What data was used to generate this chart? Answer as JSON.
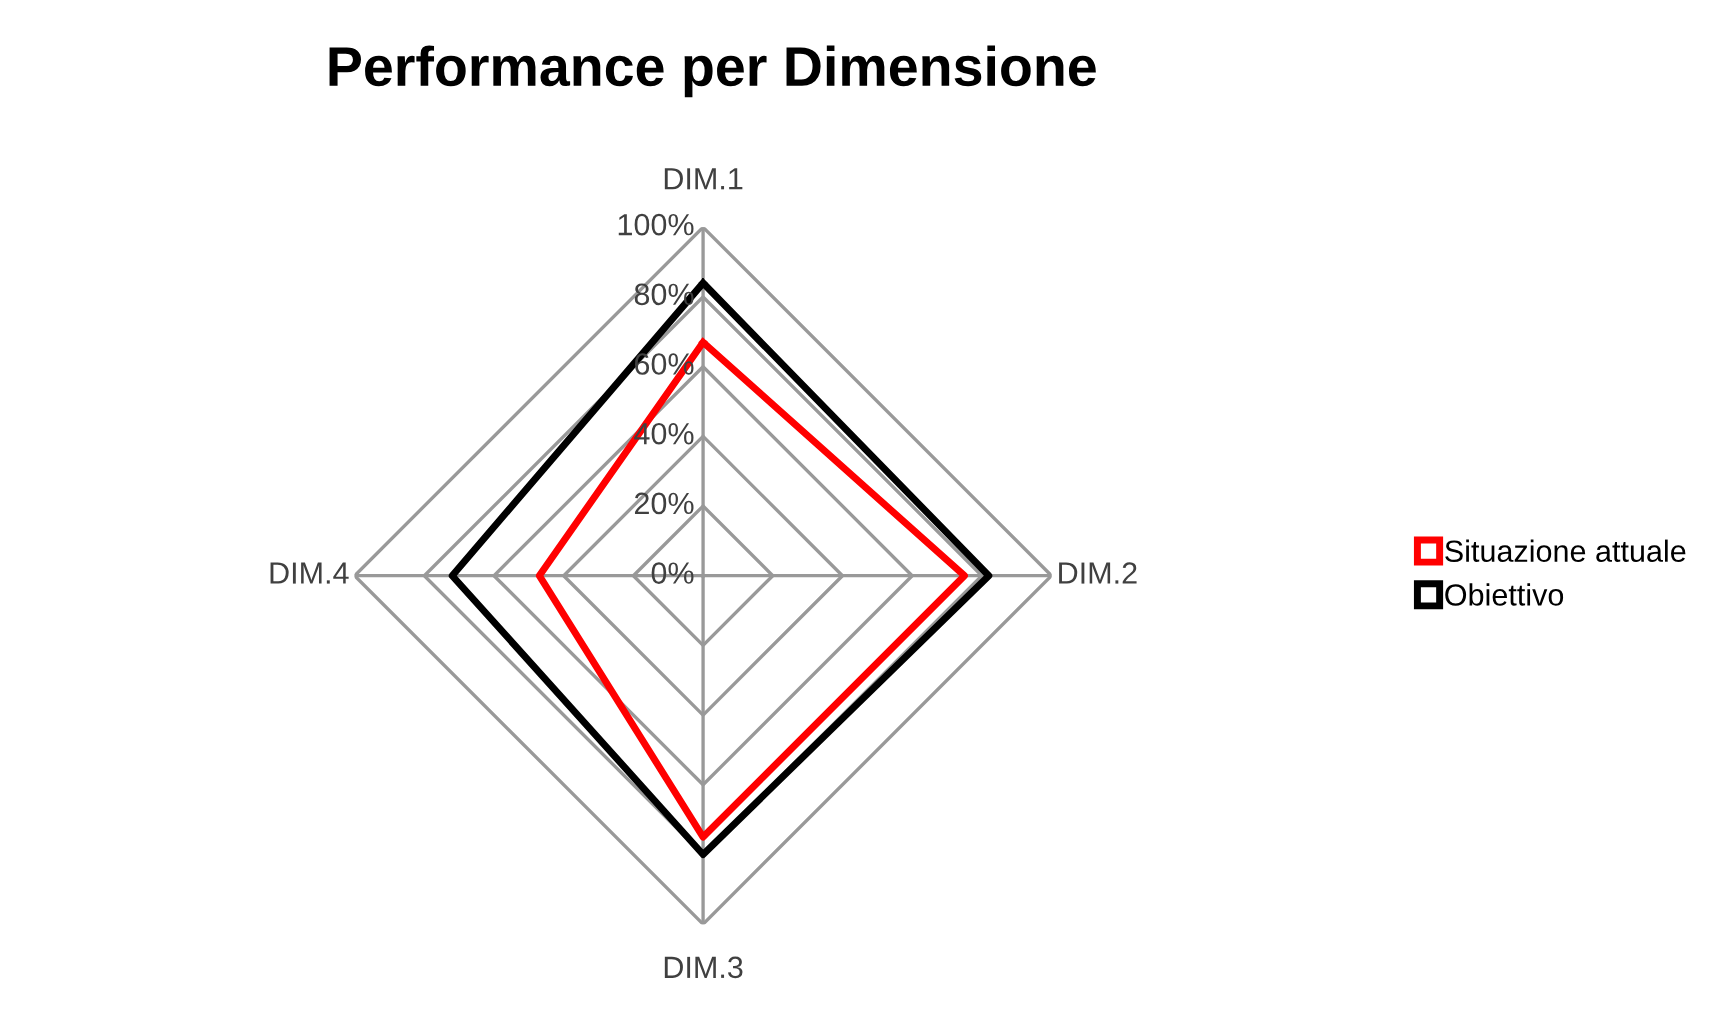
{
  "chart_data": {
    "type": "radar",
    "title": "Performance per Dimensione",
    "categories": [
      "DIM.1",
      "DIM.2",
      "DIM.3",
      "DIM.4"
    ],
    "series": [
      {
        "name": "Situazione attuale",
        "color": "#ff0000",
        "values": [
          67,
          75,
          75,
          47
        ]
      },
      {
        "name": "Obiettivo",
        "color": "#000000",
        "values": [
          84,
          82,
          80,
          72
        ]
      }
    ],
    "ylim": [
      0,
      100
    ],
    "yticks": [
      {
        "value": 0,
        "label": "0%"
      },
      {
        "value": 20,
        "label": "20%"
      },
      {
        "value": 40,
        "label": "40%"
      },
      {
        "value": 60,
        "label": "60%"
      },
      {
        "value": 80,
        "label": "80%"
      },
      {
        "value": 100,
        "label": "100%"
      }
    ],
    "grid": true,
    "legend": "right",
    "marker": "square"
  }
}
